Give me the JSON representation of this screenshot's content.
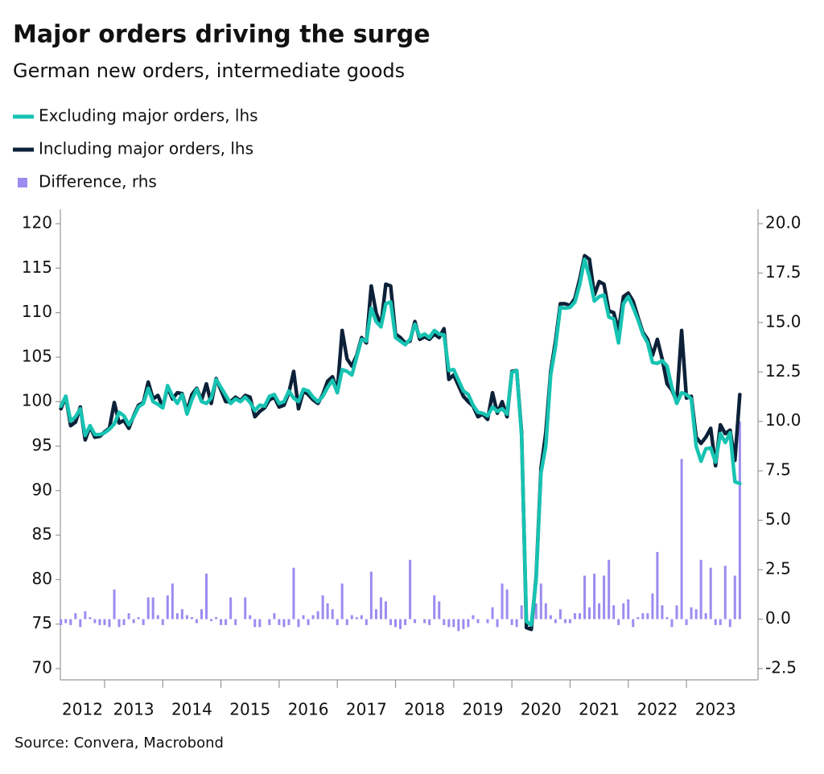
{
  "chart_data": {
    "type": "line",
    "title": "Major orders driving the surge",
    "subtitle": "German new orders, intermediate goods",
    "source": "Source: Convera, Macrobond",
    "x": [
      2012.25,
      2012.333,
      2012.417,
      2012.5,
      2012.583,
      2012.667,
      2012.75,
      2012.833,
      2012.917,
      2013,
      2013.083,
      2013.167,
      2013.25,
      2013.333,
      2013.417,
      2013.5,
      2013.583,
      2013.667,
      2013.75,
      2013.833,
      2013.917,
      2014,
      2014.083,
      2014.167,
      2014.25,
      2014.333,
      2014.417,
      2014.5,
      2014.583,
      2014.667,
      2014.75,
      2014.833,
      2014.917,
      2015,
      2015.083,
      2015.167,
      2015.25,
      2015.333,
      2015.417,
      2015.5,
      2015.583,
      2015.667,
      2015.75,
      2015.833,
      2015.917,
      2016,
      2016.083,
      2016.167,
      2016.25,
      2016.333,
      2016.417,
      2016.5,
      2016.583,
      2016.667,
      2016.75,
      2016.833,
      2016.917,
      2017,
      2017.083,
      2017.167,
      2017.25,
      2017.333,
      2017.417,
      2017.5,
      2017.583,
      2017.667,
      2017.75,
      2017.833,
      2017.917,
      2018,
      2018.083,
      2018.167,
      2018.25,
      2018.333,
      2018.417,
      2018.5,
      2018.583,
      2018.667,
      2018.75,
      2018.833,
      2018.917,
      2019,
      2019.083,
      2019.167,
      2019.25,
      2019.333,
      2019.417,
      2019.5,
      2019.583,
      2019.667,
      2019.75,
      2019.833,
      2019.917,
      2020,
      2020.083,
      2020.167,
      2020.25,
      2020.333,
      2020.417,
      2020.5,
      2020.583,
      2020.667,
      2020.75,
      2020.833,
      2020.917,
      2021,
      2021.083,
      2021.167,
      2021.25,
      2021.333,
      2021.417,
      2021.5,
      2021.583,
      2021.667,
      2021.75,
      2021.833,
      2021.917,
      2022,
      2022.083,
      2022.167,
      2022.25,
      2022.333,
      2022.417,
      2022.5,
      2022.583,
      2022.667,
      2022.75,
      2022.833,
      2022.917,
      2023,
      2023.083,
      2023.167,
      2023.25,
      2023.333,
      2023.417,
      2023.5,
      2023.583,
      2023.667,
      2023.75,
      2023.833,
      2023.917
    ],
    "xlim": [
      2012.24,
      2024.23
    ],
    "xticks": [
      2012,
      2013,
      2014,
      2015,
      2016,
      2017,
      2018,
      2019,
      2020,
      2021,
      2022,
      2023
    ],
    "ylim": [
      68.73,
      121.63
    ],
    "yticks": [
      70,
      75,
      80,
      85,
      90,
      95,
      100,
      105,
      110,
      115,
      120
    ],
    "y2lim": [
      -3.07,
      20.73
    ],
    "y2ticks": [
      {
        "value": -2.5,
        "label": "-2.5"
      },
      {
        "value": 0,
        "label": "0.0"
      },
      2.5,
      {
        "value": 5,
        "label": "5.0"
      },
      7.5,
      {
        "value": 10,
        "label": "10.0"
      },
      12.5,
      {
        "value": 15,
        "label": "15.0"
      },
      17.5,
      {
        "value": 20,
        "label": "20.0"
      }
    ],
    "series": [
      {
        "name": "Excluding major orders, lhs",
        "type": "line",
        "color": "#17c3b2",
        "values": [
          99.5,
          100.6,
          97.8,
          98.3,
          99.2,
          96.2,
          97.3,
          96.3,
          96.3,
          96.5,
          96.9,
          97.5,
          98.8,
          98.4,
          97.4,
          98.3,
          99.4,
          99.8,
          101.5,
          100.0,
          99.7,
          99.3,
          101.8,
          100.6,
          99.8,
          100.8,
          98.6,
          100.2,
          101.4,
          100.0,
          99.8,
          100.4,
          102.5,
          101.6,
          100.7,
          99.8,
          100.3,
          100.0,
          100.5,
          99.9,
          99.0,
          99.6,
          99.5,
          100.6,
          100.8,
          99.8,
          100.0,
          101.2,
          100.4,
          100.0,
          101.4,
          101.2,
          100.5,
          100.0,
          100.6,
          101.6,
          102.4,
          101.0,
          103.6,
          103.4,
          103.0,
          105.0,
          107.0,
          106.8,
          110.5,
          109.0,
          108.4,
          111.0,
          111.2,
          107.2,
          106.8,
          106.4,
          107.0,
          108.7,
          107.3,
          107.6,
          107.2,
          108.0,
          107.6,
          107.5,
          103.5,
          103.6,
          102.4,
          101.2,
          100.8,
          99.6,
          98.8,
          98.7,
          98.4,
          99.4,
          98.9,
          99.2,
          98.6,
          103.3,
          103.5,
          96.2,
          75.3,
          74.9,
          80.0,
          92.0,
          95.0,
          103.0,
          106.2,
          110.6,
          110.5,
          110.6,
          111.2,
          113.2,
          116.0,
          114.0,
          111.3,
          111.8,
          112.0,
          109.5,
          109.3,
          106.6,
          111.0,
          111.8,
          110.6,
          109.2,
          107.6,
          106.6,
          104.4,
          104.3,
          104.6,
          104.0,
          101.6,
          99.8,
          101.0,
          100.8,
          100.3,
          95.0,
          93.3,
          94.7,
          94.8,
          93.2,
          96.4,
          95.4,
          96.5,
          91.0,
          90.8
        ]
      },
      {
        "name": "Including major orders, lhs",
        "type": "line",
        "color": "#0c2138",
        "values": [
          99.2,
          100.6,
          97.3,
          97.7,
          99.4,
          95.7,
          97.2,
          96.0,
          96.1,
          96.6,
          97.0,
          99.9,
          97.6,
          97.9,
          97.0,
          98.4,
          99.6,
          99.9,
          102.2,
          100.3,
          100.7,
          99.4,
          101.6,
          100.3,
          101.0,
          100.9,
          98.9,
          100.8,
          101.5,
          100.2,
          102.0,
          99.8,
          102.6,
          101.3,
          100.0,
          100.0,
          100.5,
          100.1,
          100.7,
          100.5,
          98.3,
          98.9,
          99.3,
          100.2,
          100.5,
          99.4,
          99.6,
          101.0,
          103.4,
          99.2,
          101.2,
          100.8,
          100.2,
          99.8,
          100.8,
          102.3,
          102.8,
          101.2,
          108.0,
          104.8,
          104.0,
          105.2,
          107.2,
          106.6,
          113.0,
          110.0,
          108.5,
          113.2,
          113.0,
          107.6,
          107.2,
          106.6,
          106.8,
          109.0,
          107.0,
          107.3,
          107.0,
          107.6,
          107.2,
          108.2,
          102.5,
          103.0,
          101.8,
          100.6,
          100.0,
          99.5,
          98.3,
          98.6,
          98.0,
          101.0,
          98.7,
          100.0,
          98.3,
          103.4,
          103.5,
          96.5,
          74.6,
          74.4,
          80.3,
          92.5,
          96.5,
          103.4,
          106.8,
          111.0,
          111.0,
          110.8,
          111.6,
          113.8,
          116.4,
          116.0,
          112.0,
          113.5,
          113.2,
          110.2,
          110.0,
          108.0,
          111.8,
          112.2,
          111.3,
          109.5,
          107.8,
          107.0,
          105.2,
          107.0,
          104.8,
          102.0,
          101.3,
          100.0,
          108.0,
          100.4,
          100.6,
          96.0,
          95.3,
          96.0,
          97.0,
          92.8,
          97.4,
          96.4,
          96.8,
          93.4,
          100.8
        ]
      },
      {
        "name": "Difference, rhs",
        "type": "bar",
        "axis": "y2",
        "color": "#9b8cf0",
        "values": [
          -0.3,
          -0.2,
          -0.3,
          0.3,
          -0.4,
          0.4,
          0.1,
          -0.2,
          -0.3,
          -0.3,
          -0.4,
          1.5,
          -0.4,
          -0.3,
          0.3,
          -0.2,
          0.1,
          -0.3,
          1.1,
          1.1,
          0.2,
          -0.3,
          1.2,
          1.8,
          0.3,
          0.5,
          0.2,
          0.1,
          -0.2,
          0.5,
          2.3,
          -0.1,
          0.1,
          -0.3,
          -0.3,
          1.1,
          -0.3,
          0.0,
          1.1,
          0.2,
          -0.4,
          -0.4,
          0.0,
          -0.3,
          0.3,
          -0.3,
          -0.4,
          -0.3,
          2.6,
          -0.4,
          0.2,
          -0.3,
          0.2,
          0.4,
          1.2,
          0.8,
          0.5,
          -0.3,
          1.8,
          -0.3,
          0.2,
          0.1,
          0.2,
          -0.3,
          2.4,
          0.5,
          1.1,
          0.9,
          -0.3,
          -0.4,
          -0.5,
          -0.3,
          3.0,
          -0.2,
          0.0,
          -0.2,
          -0.3,
          1.2,
          0.9,
          -0.3,
          -0.4,
          -0.4,
          -0.6,
          -0.5,
          -0.4,
          0.2,
          -0.2,
          0.0,
          -0.2,
          0.6,
          -0.4,
          1.8,
          1.5,
          -0.3,
          -0.4,
          0.7,
          -0.3,
          -0.3,
          0.8,
          1.8,
          0.8,
          0.2,
          -0.2,
          0.5,
          -0.2,
          -0.2,
          0.3,
          0.3,
          2.2,
          0.6,
          2.3,
          0.8,
          2.2,
          3.0,
          0.7,
          -0.3,
          0.8,
          1.0,
          -0.4,
          0.1,
          0.3,
          0.3,
          1.3,
          3.4,
          0.7,
          0.1,
          -0.4,
          0.7,
          8.1,
          -0.3,
          0.6,
          0.5,
          3.0,
          0.3,
          2.6,
          -0.3,
          -0.3,
          2.7,
          -0.4,
          2.2,
          10.0
        ]
      }
    ]
  }
}
